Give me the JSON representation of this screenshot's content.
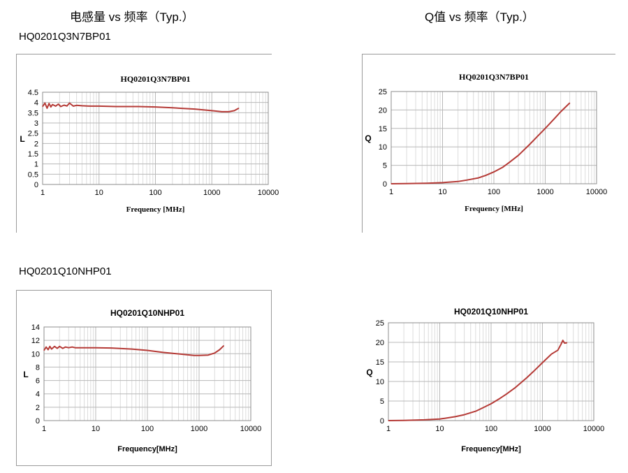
{
  "headers": {
    "left": "电感量 vs 频率（Typ.）",
    "right": "Q值 vs 频率（Typ.）"
  },
  "parts": {
    "first": "HQ0201Q3N7BP01",
    "second": "HQ0201Q10NHP01"
  },
  "colors": {
    "series": "#b53a36",
    "grid": "#c8c8c8",
    "frame": "#9a9a9a"
  },
  "chart_data": [
    {
      "type": "line",
      "title": "HQ0201Q3N7BP01",
      "xlabel": "Frequency [MHz]",
      "ylabel": "L",
      "xscale": "log",
      "xlim": [
        1,
        10000
      ],
      "ylim": [
        0,
        4.5
      ],
      "xticks": [
        "1",
        "10",
        "100",
        "1000",
        "10000"
      ],
      "yticks": [
        "0",
        "0.5",
        "1",
        "1.5",
        "2",
        "2.5",
        "3",
        "3.5",
        "4",
        "4.5"
      ],
      "grid": true,
      "series": [
        {
          "x": [
            1,
            1.1,
            1.2,
            1.3,
            1.4,
            1.5,
            1.7,
            1.9,
            2.1,
            2.4,
            2.7,
            3,
            3.5,
            4,
            5,
            7,
            10,
            20,
            50,
            100,
            200,
            500,
            1000,
            1500,
            2000,
            2500,
            3000
          ],
          "values": [
            3.8,
            3.97,
            3.72,
            3.95,
            3.78,
            3.9,
            3.82,
            3.92,
            3.8,
            3.87,
            3.83,
            3.97,
            3.82,
            3.86,
            3.84,
            3.82,
            3.82,
            3.8,
            3.8,
            3.78,
            3.74,
            3.68,
            3.6,
            3.55,
            3.55,
            3.6,
            3.72
          ]
        }
      ]
    },
    {
      "type": "line",
      "title": "HQ0201Q3N7BP01",
      "xlabel": "Frequency [MHz]",
      "ylabel": "Q",
      "xscale": "log",
      "xlim": [
        1,
        10000
      ],
      "ylim": [
        0,
        25
      ],
      "xticks": [
        "1",
        "10",
        "100",
        "1000",
        "10000"
      ],
      "yticks": [
        "0",
        "5",
        "10",
        "15",
        "20",
        "25"
      ],
      "grid": true,
      "series": [
        {
          "x": [
            1,
            2,
            5,
            10,
            20,
            30,
            50,
            70,
            100,
            150,
            200,
            300,
            500,
            700,
            1000,
            1500,
            2000,
            3000
          ],
          "values": [
            0,
            0.05,
            0.15,
            0.3,
            0.6,
            1,
            1.6,
            2.3,
            3.2,
            4.5,
            5.8,
            7.7,
            10.7,
            12.8,
            15,
            17.6,
            19.5,
            21.9
          ]
        }
      ]
    },
    {
      "type": "line",
      "title": "HQ0201Q10NHP01",
      "xlabel": "Frequency[MHz]",
      "ylabel": "L",
      "xscale": "log",
      "xlim": [
        1,
        10000
      ],
      "ylim": [
        0,
        14
      ],
      "xticks": [
        "1",
        "10",
        "100",
        "1000",
        "10000"
      ],
      "yticks": [
        "0",
        "2",
        "4",
        "6",
        "8",
        "10",
        "12",
        "14"
      ],
      "grid": true,
      "series": [
        {
          "x": [
            1,
            1.1,
            1.2,
            1.3,
            1.4,
            1.6,
            1.8,
            2,
            2.3,
            2.6,
            3,
            3.5,
            4,
            5,
            7,
            10,
            20,
            50,
            100,
            200,
            500,
            800,
            1000,
            1500,
            2000,
            2500,
            3000
          ],
          "values": [
            10.5,
            11,
            10.6,
            11.1,
            10.7,
            11.1,
            10.8,
            11.1,
            10.8,
            11,
            10.9,
            11,
            10.9,
            10.9,
            10.9,
            10.9,
            10.85,
            10.7,
            10.5,
            10.2,
            9.9,
            9.75,
            9.75,
            9.8,
            10.1,
            10.6,
            11.2
          ]
        }
      ]
    },
    {
      "type": "line",
      "title": "HQ0201Q10NHP01",
      "xlabel": "Frequency[MHz]",
      "ylabel": "Q",
      "xscale": "log",
      "xlim": [
        1,
        10000
      ],
      "ylim": [
        0,
        25
      ],
      "xticks": [
        "1",
        "10",
        "100",
        "1000",
        "10000"
      ],
      "yticks": [
        "0",
        "5",
        "10",
        "15",
        "20",
        "25"
      ],
      "grid": true,
      "series": [
        {
          "x": [
            1,
            2,
            5,
            10,
            20,
            30,
            50,
            70,
            100,
            150,
            200,
            300,
            500,
            700,
            1000,
            1500,
            2000,
            2300,
            2500,
            2700,
            3000
          ],
          "values": [
            0,
            0.05,
            0.2,
            0.4,
            1,
            1.5,
            2.4,
            3.3,
            4.3,
            5.7,
            6.8,
            8.5,
            11,
            12.8,
            14.8,
            17,
            18,
            19.5,
            20.5,
            19.8,
            19.9
          ]
        }
      ]
    }
  ]
}
